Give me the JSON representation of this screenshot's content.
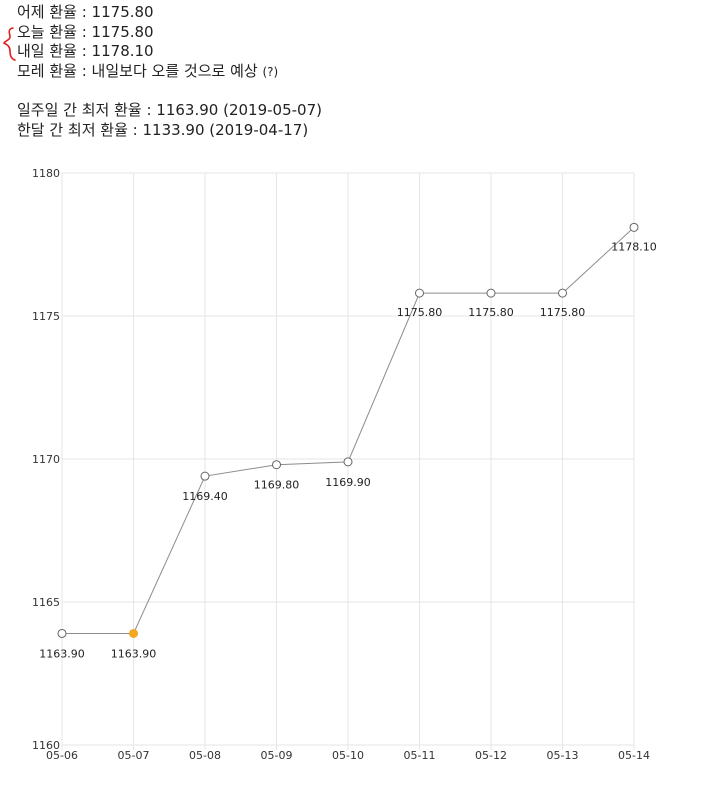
{
  "info": {
    "yesterday": "어제 환율 : 1175.80",
    "today": "오늘 환율 : 1175.80",
    "tomorrow": "내일 환율 : 1178.10",
    "day_after_prefix": "모레 환율 : 내일보다 오를 것으로 예상",
    "day_after_suffix": "(?)",
    "week_low": "일주일 간 최저 환율 : 1163.90 (2019-05-07)",
    "month_low": "한달 간 최저 환율 : 1133.90 (2019-04-17)"
  },
  "colors": {
    "line": "#8c8c8c",
    "point_border": "#666666",
    "highlight": "#f5a623",
    "grid": "#e6e6e6",
    "brace": "#e02020"
  },
  "chart_data": {
    "type": "line",
    "categories": [
      "05-06",
      "05-07",
      "05-08",
      "05-09",
      "05-10",
      "05-11",
      "05-12",
      "05-13",
      "05-14"
    ],
    "series": [
      {
        "values": [
          1163.9,
          1163.9,
          1169.4,
          1169.8,
          1169.9,
          1175.8,
          1175.8,
          1175.8,
          1178.1
        ],
        "labels": [
          "1163.90",
          "1163.90",
          "1169.40",
          "1169.80",
          "1169.90",
          "1175.80",
          "1175.80",
          "1175.80",
          "1178.10"
        ],
        "highlight_index": 1
      }
    ],
    "ylim": [
      1160,
      1180
    ],
    "yticks": [
      1160,
      1165,
      1170,
      1175,
      1180
    ],
    "ytick_labels": [
      "1160",
      "1165",
      "1170",
      "1175",
      "1180"
    ],
    "grid": true,
    "legend": "none",
    "title": "",
    "xlabel": "",
    "ylabel": ""
  }
}
